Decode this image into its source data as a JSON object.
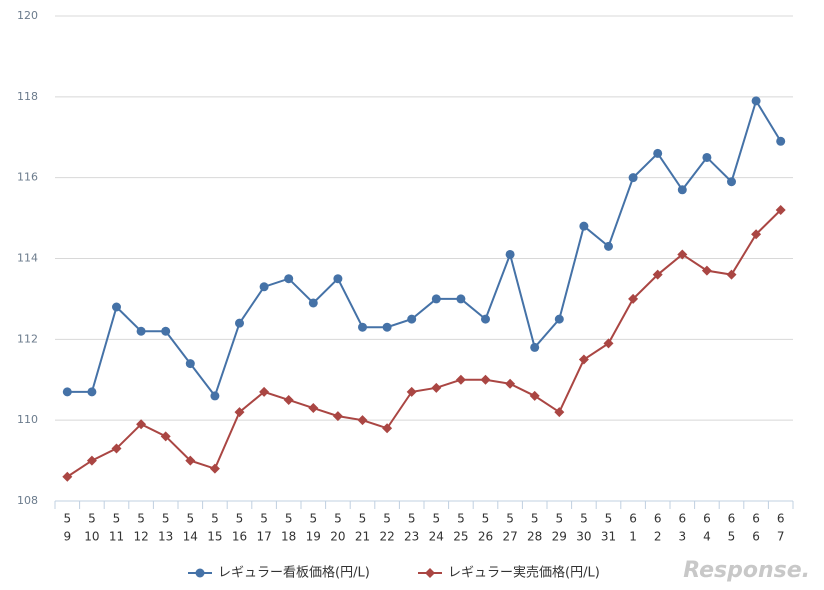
{
  "chart_data": {
    "type": "line",
    "categories": [
      [
        "5",
        "9"
      ],
      [
        "5",
        "10"
      ],
      [
        "5",
        "11"
      ],
      [
        "5",
        "12"
      ],
      [
        "5",
        "13"
      ],
      [
        "5",
        "14"
      ],
      [
        "5",
        "15"
      ],
      [
        "5",
        "16"
      ],
      [
        "5",
        "17"
      ],
      [
        "5",
        "18"
      ],
      [
        "5",
        "19"
      ],
      [
        "5",
        "20"
      ],
      [
        "5",
        "21"
      ],
      [
        "5",
        "22"
      ],
      [
        "5",
        "23"
      ],
      [
        "5",
        "24"
      ],
      [
        "5",
        "25"
      ],
      [
        "5",
        "26"
      ],
      [
        "5",
        "27"
      ],
      [
        "5",
        "28"
      ],
      [
        "5",
        "29"
      ],
      [
        "5",
        "30"
      ],
      [
        "5",
        "31"
      ],
      [
        "6",
        "1"
      ],
      [
        "6",
        "2"
      ],
      [
        "6",
        "3"
      ],
      [
        "6",
        "4"
      ],
      [
        "6",
        "5"
      ],
      [
        "6",
        "6"
      ],
      [
        "6",
        "7"
      ]
    ],
    "series": [
      {
        "name": "レギュラー看板価格(円/L)",
        "color": "#4572a7",
        "marker": "circle",
        "values": [
          110.7,
          110.7,
          112.8,
          112.2,
          112.2,
          111.4,
          110.6,
          112.4,
          113.3,
          113.5,
          112.9,
          113.5,
          112.3,
          112.3,
          112.5,
          113.0,
          113.0,
          112.5,
          114.1,
          111.8,
          112.5,
          114.8,
          114.3,
          116.0,
          116.6,
          115.7,
          116.5,
          115.9,
          117.9,
          116.9
        ]
      },
      {
        "name": "レギュラー実売価格(円/L)",
        "color": "#aa4643",
        "marker": "diamond",
        "values": [
          108.6,
          109.0,
          109.3,
          109.9,
          109.6,
          109.0,
          108.8,
          110.2,
          110.7,
          110.5,
          110.3,
          110.1,
          110.0,
          109.8,
          110.7,
          110.8,
          111.0,
          111.0,
          110.9,
          110.6,
          110.2,
          111.5,
          111.9,
          113.0,
          113.6,
          114.1,
          113.7,
          113.6,
          114.6,
          115.2
        ]
      }
    ],
    "ylim": [
      108,
      120
    ],
    "yticks": [
      108,
      110,
      112,
      114,
      116,
      118,
      120
    ],
    "grid": true,
    "legend": "bottom",
    "watermark": "Response."
  }
}
